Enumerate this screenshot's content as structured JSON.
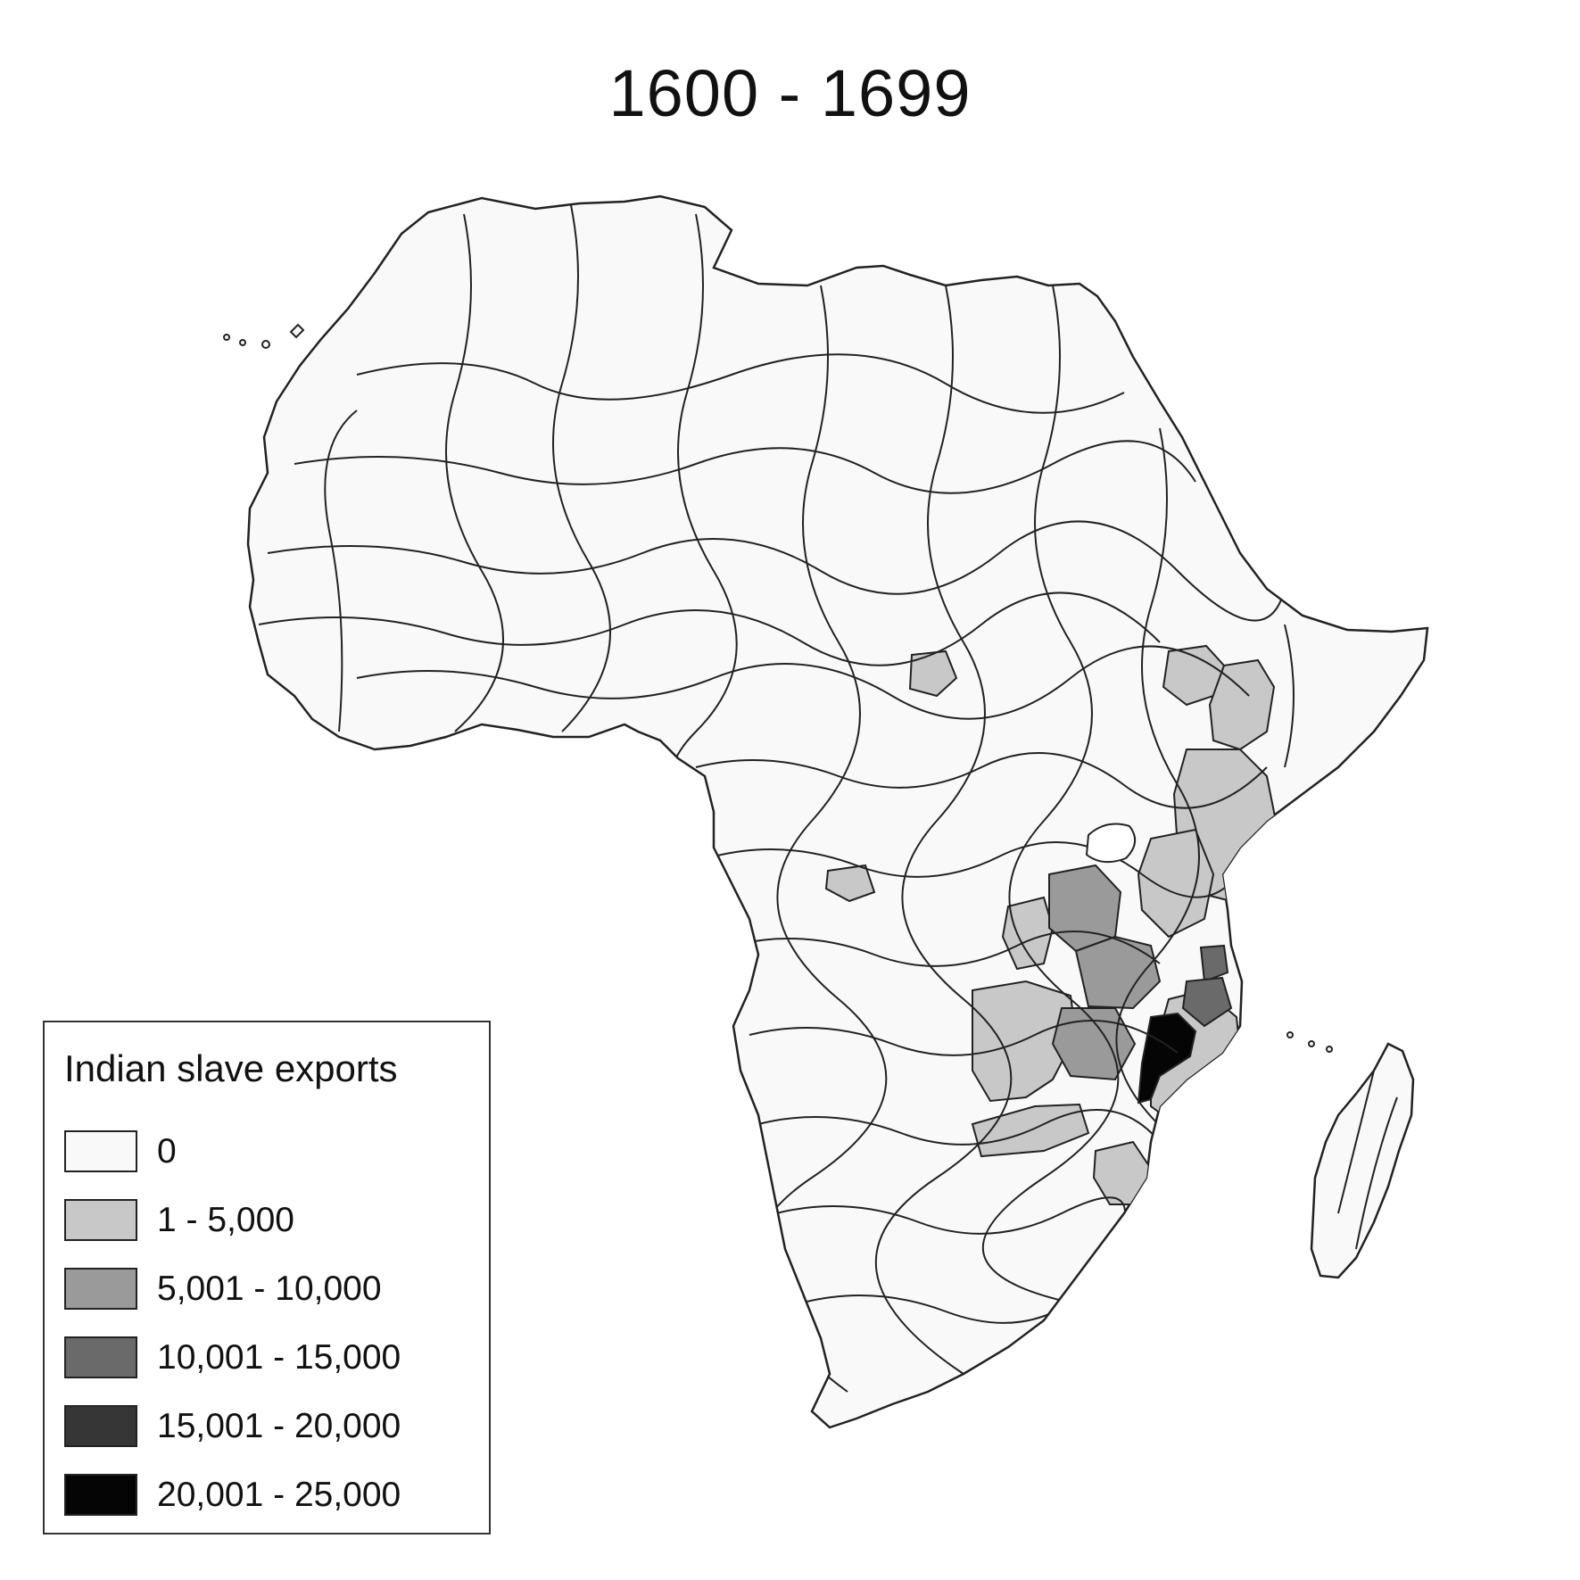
{
  "title": "1600 - 1699",
  "legend": {
    "title": "Indian slave exports",
    "items": [
      {
        "label": "0",
        "color": "#f9f9f9"
      },
      {
        "label": "1 - 5,000",
        "color": "#c8c8c8"
      },
      {
        "label": "5,001 - 10,000",
        "color": "#9a9a9a"
      },
      {
        "label": "10,001 - 15,000",
        "color": "#6a6a6a"
      },
      {
        "label": "15,001 - 20,000",
        "color": "#363636"
      },
      {
        "label": "20,001 - 25,000",
        "color": "#050505"
      }
    ]
  },
  "map": {
    "region": "Africa",
    "border_color": "#222222",
    "category_regions": {
      "0": "most of the continent",
      "1 - 5,000": "East Africa coast, interior areas of East Africa, Mozambique",
      "5,001 - 10,000": "Lake region interior of East Africa",
      "10,001 - 15,000": "Tanzania coast",
      "15,001 - 20,000": "",
      "20,001 - 25,000": "Lake Malawi area"
    }
  }
}
